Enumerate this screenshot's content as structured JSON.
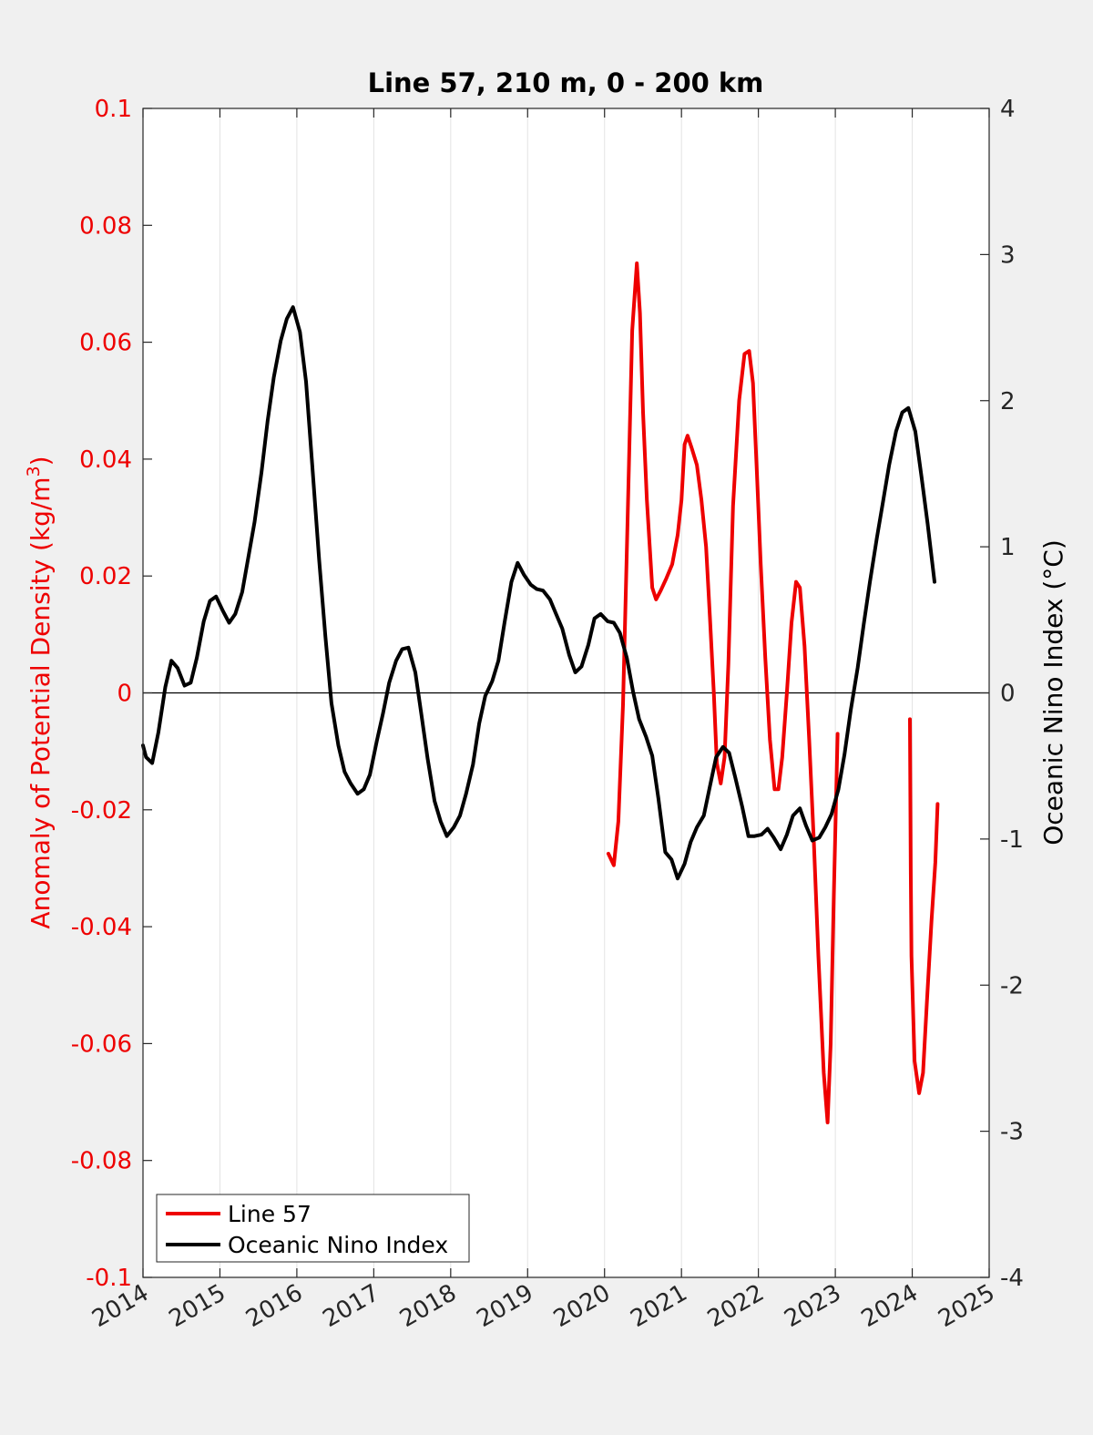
{
  "chart_data": {
    "type": "line",
    "title": "Line 57, 210 m, 0 - 200 km",
    "xlim": [
      2014,
      2025
    ],
    "x_ticks": [
      2014,
      2015,
      2016,
      2017,
      2018,
      2019,
      2020,
      2021,
      2022,
      2023,
      2024,
      2025
    ],
    "x_tick_labels": [
      "2014",
      "2015",
      "2016",
      "2017",
      "2018",
      "2019",
      "2020",
      "2021",
      "2022",
      "2023",
      "2024",
      "2025"
    ],
    "y_left": {
      "label": "Anomaly of Potential Density (kg/m³)",
      "label_main": "Anomaly of Potential Density (kg/m",
      "label_sup": "3",
      "label_end": ")",
      "ylim": [
        -0.1,
        0.1
      ],
      "ticks": [
        -0.1,
        -0.08,
        -0.06,
        -0.04,
        -0.02,
        0,
        0.02,
        0.04,
        0.06,
        0.08,
        0.1
      ],
      "tick_labels": [
        "-0.1",
        "-0.08",
        "-0.06",
        "-0.04",
        "-0.02",
        "0",
        "0.02",
        "0.04",
        "0.06",
        "0.08",
        "0.1"
      ],
      "color": "#ee0000"
    },
    "y_right": {
      "label": "Oceanic Nino Index (°C)",
      "ylim": [
        -4,
        4
      ],
      "ticks": [
        -4,
        -3,
        -2,
        -1,
        0,
        1,
        2,
        3,
        4
      ],
      "tick_labels": [
        "-4",
        "-3",
        "-2",
        "-1",
        "0",
        "1",
        "2",
        "3",
        "4"
      ],
      "color": "#000000"
    },
    "grid": "vertical",
    "zero_line": true,
    "legend_placement": "bottom-left",
    "series": [
      {
        "name": "Line 57",
        "axis": "left",
        "color": "#ee0000",
        "segments": [
          [
            [
              2020.05,
              -0.0275
            ],
            [
              2020.12,
              -0.0295
            ],
            [
              2020.18,
              -0.022
            ],
            [
              2020.24,
              -0.002
            ],
            [
              2020.3,
              0.03
            ],
            [
              2020.36,
              0.062
            ],
            [
              2020.42,
              0.0735
            ],
            [
              2020.46,
              0.065
            ],
            [
              2020.5,
              0.048
            ],
            [
              2020.55,
              0.033
            ],
            [
              2020.62,
              0.018
            ],
            [
              2020.67,
              0.016
            ],
            [
              2020.73,
              0.0175
            ],
            [
              2020.8,
              0.0195
            ],
            [
              2020.88,
              0.022
            ],
            [
              2020.95,
              0.027
            ],
            [
              2021.0,
              0.033
            ],
            [
              2021.04,
              0.0425
            ],
            [
              2021.08,
              0.044
            ],
            [
              2021.13,
              0.042
            ],
            [
              2021.2,
              0.039
            ],
            [
              2021.26,
              0.033
            ],
            [
              2021.32,
              0.025
            ],
            [
              2021.37,
              0.013
            ],
            [
              2021.42,
              0.0
            ],
            [
              2021.46,
              -0.012
            ],
            [
              2021.51,
              -0.0155
            ],
            [
              2021.56,
              -0.011
            ],
            [
              2021.61,
              0.005
            ],
            [
              2021.67,
              0.032
            ],
            [
              2021.75,
              0.05
            ],
            [
              2021.82,
              0.058
            ],
            [
              2021.88,
              0.0585
            ],
            [
              2021.93,
              0.053
            ],
            [
              2021.98,
              0.038
            ],
            [
              2022.03,
              0.022
            ],
            [
              2022.09,
              0.006
            ],
            [
              2022.15,
              -0.008
            ],
            [
              2022.21,
              -0.0165
            ],
            [
              2022.26,
              -0.0165
            ],
            [
              2022.31,
              -0.011
            ],
            [
              2022.37,
              0.0
            ],
            [
              2022.43,
              0.012
            ],
            [
              2022.49,
              0.019
            ],
            [
              2022.54,
              0.018
            ],
            [
              2022.6,
              0.008
            ],
            [
              2022.66,
              -0.008
            ],
            [
              2022.72,
              -0.025
            ],
            [
              2022.78,
              -0.045
            ],
            [
              2022.85,
              -0.065
            ],
            [
              2022.9,
              -0.0735
            ],
            [
              2022.94,
              -0.06
            ],
            [
              2022.98,
              -0.035
            ],
            [
              2023.03,
              -0.007
            ]
          ],
          [
            [
              2023.97,
              -0.0045
            ],
            [
              2023.98,
              -0.03
            ],
            [
              2023.99,
              -0.045
            ],
            [
              2024.03,
              -0.063
            ],
            [
              2024.09,
              -0.0685
            ],
            [
              2024.14,
              -0.065
            ],
            [
              2024.19,
              -0.053
            ],
            [
              2024.25,
              -0.039
            ],
            [
              2024.3,
              -0.029
            ],
            [
              2024.33,
              -0.019
            ]
          ]
        ]
      },
      {
        "name": "Oceanic Nino Index",
        "axis": "right",
        "color": "#000000",
        "segments": [
          [
            [
              2014.0,
              -0.36
            ],
            [
              2014.04,
              -0.44
            ],
            [
              2014.12,
              -0.48
            ],
            [
              2014.2,
              -0.27
            ],
            [
              2014.29,
              0.04
            ],
            [
              2014.37,
              0.22
            ],
            [
              2014.45,
              0.17
            ],
            [
              2014.54,
              0.05
            ],
            [
              2014.62,
              0.07
            ],
            [
              2014.7,
              0.24
            ],
            [
              2014.79,
              0.49
            ],
            [
              2014.87,
              0.63
            ],
            [
              2014.95,
              0.66
            ],
            [
              2015.04,
              0.56
            ],
            [
              2015.12,
              0.48
            ],
            [
              2015.2,
              0.54
            ],
            [
              2015.29,
              0.69
            ],
            [
              2015.37,
              0.93
            ],
            [
              2015.45,
              1.17
            ],
            [
              2015.54,
              1.51
            ],
            [
              2015.62,
              1.86
            ],
            [
              2015.7,
              2.16
            ],
            [
              2015.79,
              2.41
            ],
            [
              2015.87,
              2.56
            ],
            [
              2015.95,
              2.64
            ],
            [
              2016.04,
              2.47
            ],
            [
              2016.12,
              2.13
            ],
            [
              2016.2,
              1.56
            ],
            [
              2016.29,
              0.91
            ],
            [
              2016.37,
              0.39
            ],
            [
              2016.45,
              -0.07
            ],
            [
              2016.54,
              -0.36
            ],
            [
              2016.62,
              -0.54
            ],
            [
              2016.7,
              -0.62
            ],
            [
              2016.79,
              -0.69
            ],
            [
              2016.87,
              -0.66
            ],
            [
              2016.95,
              -0.56
            ],
            [
              2017.04,
              -0.33
            ],
            [
              2017.12,
              -0.14
            ],
            [
              2017.2,
              0.07
            ],
            [
              2017.29,
              0.22
            ],
            [
              2017.37,
              0.3
            ],
            [
              2017.45,
              0.31
            ],
            [
              2017.54,
              0.14
            ],
            [
              2017.62,
              -0.15
            ],
            [
              2017.7,
              -0.45
            ],
            [
              2017.79,
              -0.74
            ],
            [
              2017.87,
              -0.88
            ],
            [
              2017.95,
              -0.98
            ],
            [
              2018.04,
              -0.92
            ],
            [
              2018.12,
              -0.84
            ],
            [
              2018.2,
              -0.69
            ],
            [
              2018.29,
              -0.49
            ],
            [
              2018.37,
              -0.21
            ],
            [
              2018.45,
              -0.02
            ],
            [
              2018.54,
              0.08
            ],
            [
              2018.62,
              0.22
            ],
            [
              2018.7,
              0.48
            ],
            [
              2018.79,
              0.76
            ],
            [
              2018.87,
              0.89
            ],
            [
              2018.95,
              0.81
            ],
            [
              2019.04,
              0.74
            ],
            [
              2019.12,
              0.71
            ],
            [
              2019.2,
              0.7
            ],
            [
              2019.29,
              0.64
            ],
            [
              2019.37,
              0.54
            ],
            [
              2019.45,
              0.44
            ],
            [
              2019.54,
              0.26
            ],
            [
              2019.62,
              0.14
            ],
            [
              2019.7,
              0.18
            ],
            [
              2019.79,
              0.33
            ],
            [
              2019.87,
              0.51
            ],
            [
              2019.95,
              0.54
            ],
            [
              2020.04,
              0.49
            ],
            [
              2020.12,
              0.48
            ],
            [
              2020.2,
              0.41
            ],
            [
              2020.29,
              0.24
            ],
            [
              2020.37,
              0.01
            ],
            [
              2020.45,
              -0.18
            ],
            [
              2020.54,
              -0.3
            ],
            [
              2020.62,
              -0.43
            ],
            [
              2020.7,
              -0.72
            ],
            [
              2020.79,
              -1.09
            ],
            [
              2020.87,
              -1.14
            ],
            [
              2020.95,
              -1.27
            ],
            [
              2021.04,
              -1.17
            ],
            [
              2021.12,
              -1.02
            ],
            [
              2021.2,
              -0.92
            ],
            [
              2021.29,
              -0.84
            ],
            [
              2021.37,
              -0.64
            ],
            [
              2021.45,
              -0.44
            ],
            [
              2021.54,
              -0.37
            ],
            [
              2021.62,
              -0.41
            ],
            [
              2021.7,
              -0.58
            ],
            [
              2021.79,
              -0.78
            ],
            [
              2021.87,
              -0.98
            ],
            [
              2021.95,
              -0.98
            ],
            [
              2022.04,
              -0.97
            ],
            [
              2022.12,
              -0.93
            ],
            [
              2022.2,
              -0.99
            ],
            [
              2022.29,
              -1.07
            ],
            [
              2022.37,
              -0.97
            ],
            [
              2022.45,
              -0.84
            ],
            [
              2022.54,
              -0.79
            ],
            [
              2022.62,
              -0.91
            ],
            [
              2022.7,
              -1.01
            ],
            [
              2022.79,
              -0.99
            ],
            [
              2022.87,
              -0.92
            ],
            [
              2022.95,
              -0.83
            ],
            [
              2023.04,
              -0.66
            ],
            [
              2023.12,
              -0.42
            ],
            [
              2023.2,
              -0.12
            ],
            [
              2023.29,
              0.17
            ],
            [
              2023.37,
              0.47
            ],
            [
              2023.45,
              0.76
            ],
            [
              2023.54,
              1.06
            ],
            [
              2023.62,
              1.31
            ],
            [
              2023.7,
              1.56
            ],
            [
              2023.79,
              1.79
            ],
            [
              2023.87,
              1.92
            ],
            [
              2023.95,
              1.95
            ],
            [
              2024.04,
              1.79
            ],
            [
              2024.12,
              1.48
            ],
            [
              2024.2,
              1.16
            ],
            [
              2024.29,
              0.76
            ]
          ]
        ]
      }
    ]
  }
}
